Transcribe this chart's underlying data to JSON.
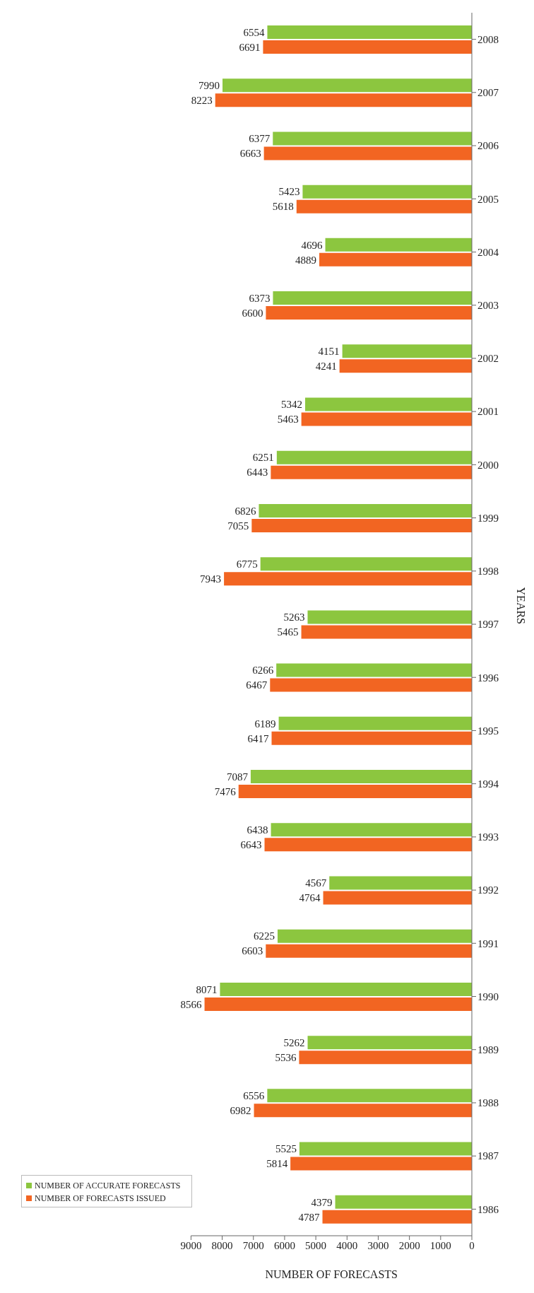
{
  "chart_data": {
    "type": "bar",
    "orientation": "horizontal",
    "xlabel": "NUMBER OF FORECASTS",
    "ylabel": "YEARS",
    "categories": [
      "2008",
      "2007",
      "2006",
      "2005",
      "2004",
      "2003",
      "2002",
      "2001",
      "2000",
      "1999",
      "1998",
      "1997",
      "1996",
      "1995",
      "1994",
      "1993",
      "1992",
      "1991",
      "1990",
      "1989",
      "1988",
      "1987",
      "1986"
    ],
    "series": [
      {
        "name": "NUMBER OF ACCURATE FORECASTS",
        "color": "#8cc63f",
        "values": [
          6554,
          7990,
          6377,
          5423,
          4696,
          6373,
          4151,
          5342,
          6251,
          6826,
          6775,
          5263,
          6266,
          6189,
          7087,
          6438,
          4567,
          6225,
          8071,
          5262,
          6556,
          5525,
          4379
        ]
      },
      {
        "name": "NUMBER OF FORECASTS ISSUED",
        "color": "#f26522",
        "values": [
          6691,
          8223,
          6663,
          5618,
          4889,
          6600,
          4241,
          5463,
          6443,
          7055,
          7943,
          5465,
          6467,
          6417,
          7476,
          6643,
          4764,
          6603,
          8566,
          5536,
          6982,
          5814,
          4787
        ]
      }
    ],
    "xlim": [
      9000,
      0
    ],
    "xticks": [
      9000,
      8000,
      7000,
      6000,
      5000,
      4000,
      3000,
      2000,
      1000,
      0
    ],
    "data_labels": true,
    "legend": "bottom left",
    "grid": false
  }
}
